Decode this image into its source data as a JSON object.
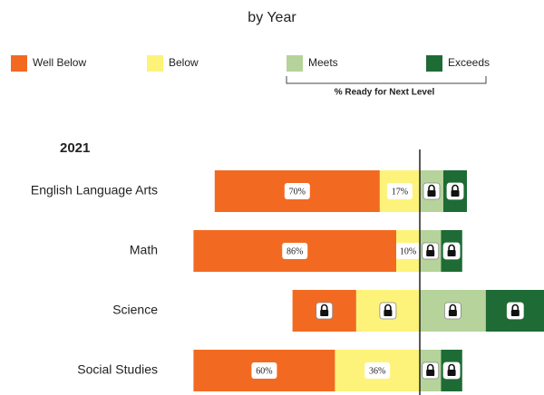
{
  "chart_data": {
    "type": "diverging_bar",
    "title": "by Year",
    "subtitle": "2021",
    "bracket_label": "% Ready for Next Level",
    "categories": [
      "English Language Arts",
      "Math",
      "Science",
      "Social Studies"
    ],
    "series": [
      {
        "name": "Well Below",
        "color": "#f26a22",
        "side": "left",
        "values": [
          70,
          86,
          27,
          60
        ],
        "value_labels": [
          "70%",
          "86%",
          null,
          "60%"
        ]
      },
      {
        "name": "Below",
        "color": "#fdf37a",
        "side": "left",
        "values": [
          17,
          10,
          27,
          36
        ],
        "value_labels": [
          "17%",
          "10%",
          null,
          "36%"
        ]
      },
      {
        "name": "Meets",
        "color": "#b5d39a",
        "side": "right",
        "values": [
          10,
          9,
          28,
          9
        ],
        "value_labels": [
          null,
          null,
          null,
          null
        ]
      },
      {
        "name": "Exceeds",
        "color": "#1e6b35",
        "side": "right",
        "values": [
          10,
          9,
          25,
          9
        ],
        "value_labels": [
          null,
          null,
          null,
          null
        ]
      }
    ]
  }
}
